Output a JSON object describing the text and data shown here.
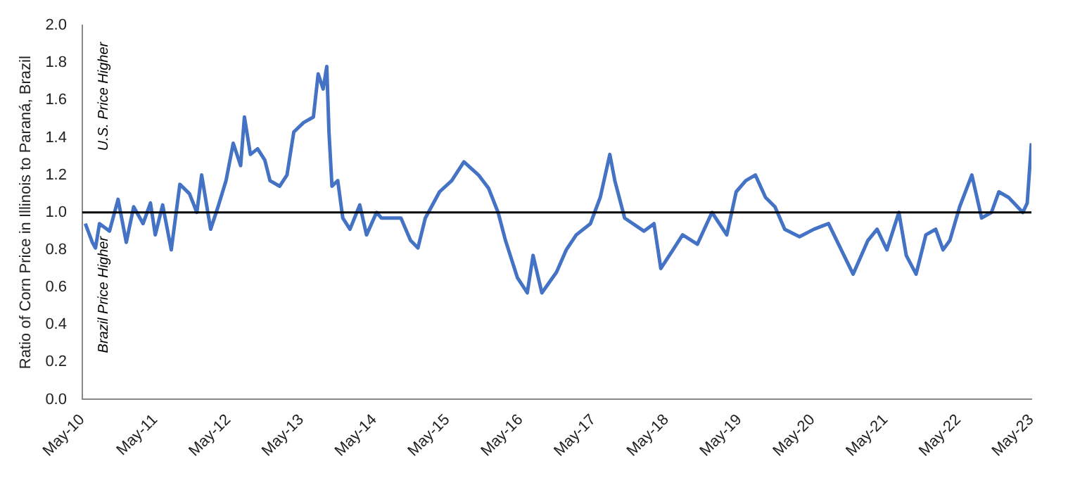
{
  "chart_data": {
    "type": "line",
    "ylabel": "Ratio of Corn Price in Illinois to Paraná, Brazil",
    "annotations": [
      "U.S. Price Higher",
      "Brazil Price Higher"
    ],
    "x": [
      "2010-05-16",
      "2010-06-20",
      "2010-07-06",
      "2010-07-26",
      "2010-09-14",
      "2010-10-27",
      "2010-12-07",
      "2011-01-13",
      "2011-03-01",
      "2011-04-07",
      "2011-05-01",
      "2011-06-07",
      "2011-07-20",
      "2011-09-01",
      "2011-10-19",
      "2011-11-25",
      "2011-12-19",
      "2012-02-02",
      "2012-03-13",
      "2012-04-19",
      "2012-05-25",
      "2012-07-01",
      "2012-07-20",
      "2012-08-19",
      "2012-09-24",
      "2012-10-30",
      "2012-11-25",
      "2013-01-12",
      "2013-02-18",
      "2013-03-24",
      "2013-05-12",
      "2013-06-30",
      "2013-07-24",
      "2013-08-18",
      "2013-09-05",
      "2013-09-16",
      "2013-10-01",
      "2013-10-30",
      "2013-11-24",
      "2013-12-30",
      "2014-02-17",
      "2014-03-23",
      "2014-05-12",
      "2014-06-05",
      "2014-09-11",
      "2014-10-29",
      "2014-12-05",
      "2015-01-11",
      "2015-03-23",
      "2015-05-23",
      "2015-07-23",
      "2015-10-04",
      "2015-11-23",
      "2016-01-10",
      "2016-02-16",
      "2016-04-16",
      "2016-06-04",
      "2016-07-03",
      "2016-08-16",
      "2016-10-28",
      "2016-12-16",
      "2017-02-04",
      "2017-04-16",
      "2017-06-04",
      "2017-07-22",
      "2017-08-16",
      "2017-10-04",
      "2018-01-09",
      "2018-02-28",
      "2018-04-03",
      "2018-06-03",
      "2018-07-21",
      "2018-10-03",
      "2018-12-15",
      "2019-02-27",
      "2019-04-15",
      "2019-06-02",
      "2019-07-20",
      "2019-09-09",
      "2019-10-26",
      "2019-12-14",
      "2020-02-26",
      "2020-05-08",
      "2020-07-20",
      "2020-09-08",
      "2020-11-20",
      "2021-02-02",
      "2021-03-20",
      "2021-05-08",
      "2021-07-07",
      "2021-08-13",
      "2021-10-01",
      "2021-11-19",
      "2022-01-07",
      "2022-02-13",
      "2022-03-19",
      "2022-05-07",
      "2022-07-07",
      "2022-08-25",
      "2022-10-13",
      "2022-11-19",
      "2023-01-07",
      "2023-03-19",
      "2023-04-10",
      "2023-05-01"
    ],
    "series": [
      {
        "color": "#4472c4",
        "values": [
          0.94,
          0.84,
          0.81,
          0.94,
          0.9,
          1.07,
          0.84,
          1.03,
          0.94,
          1.05,
          0.88,
          1.04,
          0.8,
          1.15,
          1.1,
          1.0,
          1.2,
          0.91,
          1.04,
          1.17,
          1.37,
          1.25,
          1.51,
          1.31,
          1.34,
          1.28,
          1.17,
          1.14,
          1.2,
          1.43,
          1.48,
          1.51,
          1.74,
          1.66,
          1.78,
          1.43,
          1.14,
          1.17,
          0.97,
          0.91,
          1.04,
          0.88,
          1.0,
          0.97,
          0.97,
          0.85,
          0.81,
          0.97,
          1.11,
          1.17,
          1.27,
          1.2,
          1.13,
          1.0,
          0.85,
          0.65,
          0.57,
          0.77,
          0.57,
          0.68,
          0.8,
          0.88,
          0.94,
          1.08,
          1.31,
          1.17,
          0.97,
          0.9,
          0.94,
          0.7,
          0.8,
          0.88,
          0.83,
          1.0,
          0.88,
          1.11,
          1.17,
          1.2,
          1.08,
          1.03,
          0.91,
          0.87,
          0.91,
          0.94,
          0.83,
          0.67,
          0.85,
          0.91,
          0.8,
          1.0,
          0.77,
          0.67,
          0.88,
          0.91,
          0.8,
          0.85,
          1.03,
          1.2,
          0.97,
          1.0,
          1.11,
          1.08,
          1.0,
          1.05,
          1.37
        ]
      }
    ],
    "xlim": [
      "2010-05-01",
      "2023-05-01"
    ],
    "xticks": [
      {
        "value": "2010-05-01",
        "label": "May-10"
      },
      {
        "value": "2011-05-01",
        "label": "May-11"
      },
      {
        "value": "2012-05-01",
        "label": "May-12"
      },
      {
        "value": "2013-05-01",
        "label": "May-13"
      },
      {
        "value": "2014-05-01",
        "label": "May-14"
      },
      {
        "value": "2015-05-01",
        "label": "May-15"
      },
      {
        "value": "2016-05-01",
        "label": "May-16"
      },
      {
        "value": "2017-05-01",
        "label": "May-17"
      },
      {
        "value": "2018-05-01",
        "label": "May-18"
      },
      {
        "value": "2019-05-01",
        "label": "May-19"
      },
      {
        "value": "2020-05-01",
        "label": "May-20"
      },
      {
        "value": "2021-05-01",
        "label": "May-21"
      },
      {
        "value": "2022-05-01",
        "label": "May-22"
      },
      {
        "value": "2023-05-01",
        "label": "May-23"
      }
    ],
    "ylim": [
      0,
      2
    ],
    "yticks": [
      {
        "value": 0,
        "label": "0.0"
      },
      0.2,
      0.4,
      0.6,
      0.8,
      {
        "value": 1,
        "label": "1.0"
      },
      1.2,
      1.4,
      1.6,
      1.8,
      {
        "value": 2,
        "label": "2.0"
      }
    ],
    "ref_lines": [
      {
        "axis": "y",
        "value": 1,
        "color": "#000000"
      }
    ],
    "grid": false,
    "legend": false,
    "marker": "none",
    "line_style": "solid"
  }
}
